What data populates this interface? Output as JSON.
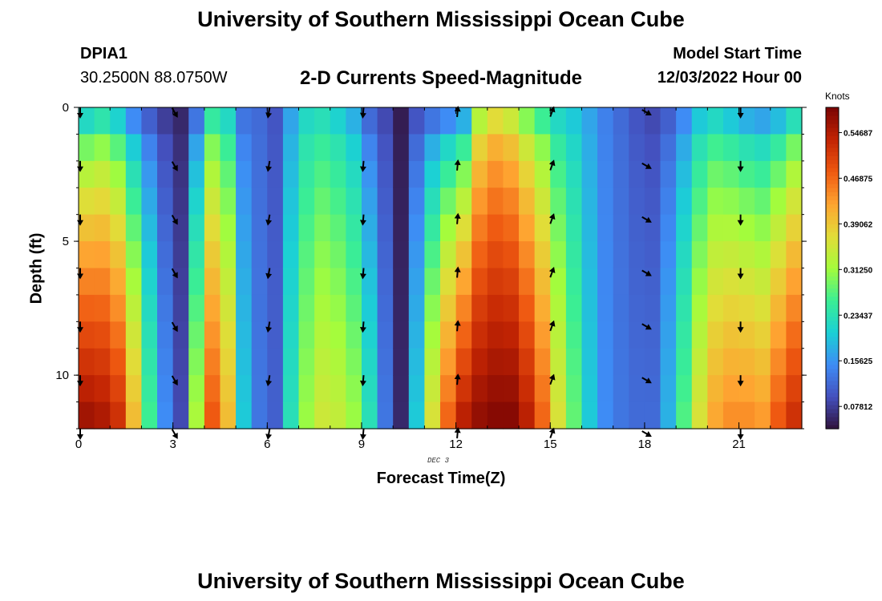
{
  "header": {
    "title": "University of Southern Mississippi Ocean Cube",
    "station": "DPIA1",
    "coords": "30.2500N  88.0750W",
    "subtitle": "2-D Currents Speed-Magnitude",
    "model_label": "Model Start Time",
    "model_time": "12/03/2022 Hour 00"
  },
  "footer": {
    "title": "University of Southern Mississippi Ocean Cube"
  },
  "colorbar": {
    "units": "Knots",
    "ticks": [
      "0.07812",
      "0.15625",
      "0.23437",
      "0.31250",
      "0.39062",
      "0.46875",
      "0.54687"
    ],
    "range": [
      0.04,
      0.59
    ]
  },
  "chart_data": {
    "type": "heatmap",
    "title": "2-D Currents Speed-Magnitude",
    "xlabel": "Forecast Time(Z)",
    "ylabel": "Depth (ft)",
    "date_label": "DEC 3",
    "xticks": [
      "0",
      "3",
      "6",
      "9",
      "12",
      "15",
      "18",
      "21"
    ],
    "yticks": [
      "0",
      "5",
      "10"
    ],
    "xlim": [
      0,
      23
    ],
    "ylim": [
      12,
      0
    ],
    "depths": [
      0.5,
      1.5,
      2.5,
      3.5,
      4.5,
      5.5,
      6.5,
      7.5,
      8.5,
      9.5,
      10.5,
      11.5
    ],
    "hours": [
      0,
      0.5,
      1,
      1.5,
      2,
      2.5,
      3,
      3.5,
      4,
      4.5,
      5,
      5.5,
      6,
      6.5,
      7,
      7.5,
      8,
      8.5,
      9,
      9.5,
      10,
      10.5,
      11,
      11.5,
      12,
      12.5,
      13,
      13.5,
      14,
      14.5,
      15,
      15.5,
      16,
      16.5,
      17,
      17.5,
      18,
      18.5,
      19,
      19.5,
      20,
      20.5,
      21,
      21.5,
      22,
      22.5
    ],
    "profiles": [
      {
        "hour": 0,
        "top": 0.22,
        "bottom": 0.56
      },
      {
        "hour": 0.5,
        "top": 0.24,
        "bottom": 0.55
      },
      {
        "hour": 1,
        "top": 0.21,
        "bottom": 0.52
      },
      {
        "hour": 1.5,
        "top": 0.15,
        "bottom": 0.4
      },
      {
        "hour": 2,
        "top": 0.11,
        "bottom": 0.26
      },
      {
        "hour": 2.5,
        "top": 0.08,
        "bottom": 0.15
      },
      {
        "hour": 3,
        "top": 0.06,
        "bottom": 0.09
      },
      {
        "hour": 3.5,
        "top": 0.13,
        "bottom": 0.32
      },
      {
        "hour": 4,
        "top": 0.25,
        "bottom": 0.48
      },
      {
        "hour": 4.5,
        "top": 0.22,
        "bottom": 0.4
      },
      {
        "hour": 5,
        "top": 0.13,
        "bottom": 0.2
      },
      {
        "hour": 5.5,
        "top": 0.12,
        "bottom": 0.13
      },
      {
        "hour": 6,
        "top": 0.1,
        "bottom": 0.11
      },
      {
        "hour": 6.5,
        "top": 0.17,
        "bottom": 0.23
      },
      {
        "hour": 7,
        "top": 0.22,
        "bottom": 0.31
      },
      {
        "hour": 7.5,
        "top": 0.23,
        "bottom": 0.35
      },
      {
        "hour": 8,
        "top": 0.21,
        "bottom": 0.34
      },
      {
        "hour": 8.5,
        "top": 0.18,
        "bottom": 0.31
      },
      {
        "hour": 9,
        "top": 0.12,
        "bottom": 0.23
      },
      {
        "hour": 9.5,
        "top": 0.09,
        "bottom": 0.13
      },
      {
        "hour": 10,
        "top": 0.05,
        "bottom": 0.06
      },
      {
        "hour": 10.5,
        "top": 0.1,
        "bottom": 0.2
      },
      {
        "hour": 11,
        "top": 0.13,
        "bottom": 0.36
      },
      {
        "hour": 11.5,
        "top": 0.15,
        "bottom": 0.47
      },
      {
        "hour": 12,
        "top": 0.18,
        "bottom": 0.54
      },
      {
        "hour": 12.5,
        "top": 0.33,
        "bottom": 0.57
      },
      {
        "hour": 13,
        "top": 0.37,
        "bottom": 0.58
      },
      {
        "hour": 13.5,
        "top": 0.35,
        "bottom": 0.58
      },
      {
        "hour": 14,
        "top": 0.3,
        "bottom": 0.54
      },
      {
        "hour": 14.5,
        "top": 0.26,
        "bottom": 0.47
      },
      {
        "hour": 15,
        "top": 0.22,
        "bottom": 0.36
      },
      {
        "hour": 15.5,
        "top": 0.2,
        "bottom": 0.28
      },
      {
        "hour": 16,
        "top": 0.17,
        "bottom": 0.2
      },
      {
        "hour": 16.5,
        "top": 0.14,
        "bottom": 0.15
      },
      {
        "hour": 17,
        "top": 0.12,
        "bottom": 0.13
      },
      {
        "hour": 17.5,
        "top": 0.1,
        "bottom": 0.12
      },
      {
        "hour": 18,
        "top": 0.09,
        "bottom": 0.12
      },
      {
        "hour": 18.5,
        "top": 0.11,
        "bottom": 0.18
      },
      {
        "hour": 19,
        "top": 0.15,
        "bottom": 0.27
      },
      {
        "hour": 19.5,
        "top": 0.2,
        "bottom": 0.36
      },
      {
        "hour": 20,
        "top": 0.22,
        "bottom": 0.42
      },
      {
        "hour": 20.5,
        "top": 0.2,
        "bottom": 0.44
      },
      {
        "hour": 21,
        "top": 0.18,
        "bottom": 0.44
      },
      {
        "hour": 21.5,
        "top": 0.17,
        "bottom": 0.43
      },
      {
        "hour": 22,
        "top": 0.19,
        "bottom": 0.48
      },
      {
        "hour": 22.5,
        "top": 0.23,
        "bottom": 0.52
      }
    ],
    "arrows": {
      "hours": [
        0,
        3,
        6,
        9,
        12,
        15,
        18,
        21
      ],
      "depths": [
        0,
        2,
        4,
        6,
        8,
        10,
        12
      ],
      "directions_deg": [
        180,
        150,
        190,
        185,
        5,
        20,
        120,
        180
      ]
    }
  }
}
